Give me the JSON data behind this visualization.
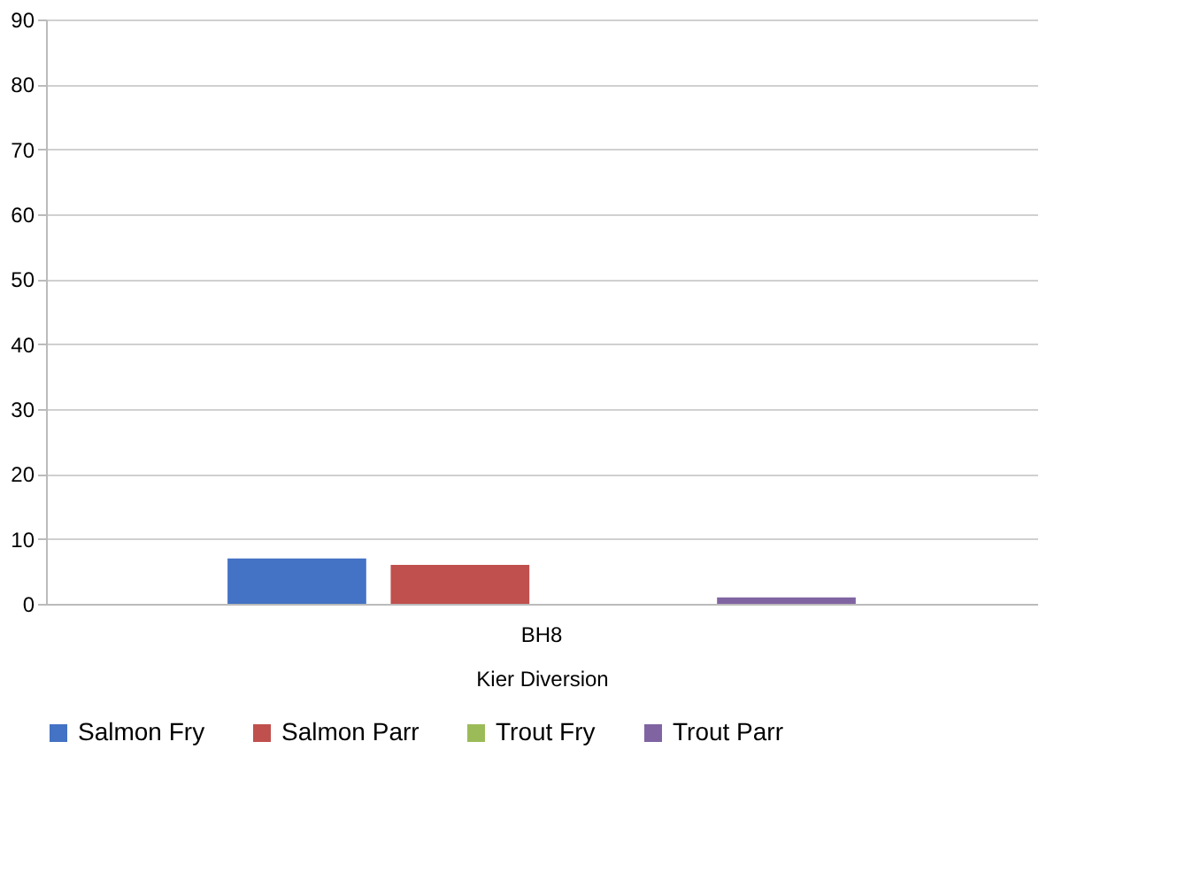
{
  "chart_data": {
    "type": "bar",
    "categories": [
      "BH8"
    ],
    "xlabel": "Kier Diversion",
    "series": [
      {
        "name": "Salmon Fry",
        "color": "#4472c4",
        "values": [
          7
        ]
      },
      {
        "name": "Salmon Parr",
        "color": "#c0504d",
        "values": [
          6
        ]
      },
      {
        "name": "Trout Fry",
        "color": "#9bbb59",
        "values": [
          0
        ]
      },
      {
        "name": "Trout Parr",
        "color": "#8064a2",
        "values": [
          1
        ]
      }
    ],
    "ylim": [
      0,
      90
    ],
    "yticks": [
      0,
      10,
      20,
      30,
      40,
      50,
      60,
      70,
      80,
      90
    ],
    "grid": "y",
    "legend": "bottom"
  }
}
